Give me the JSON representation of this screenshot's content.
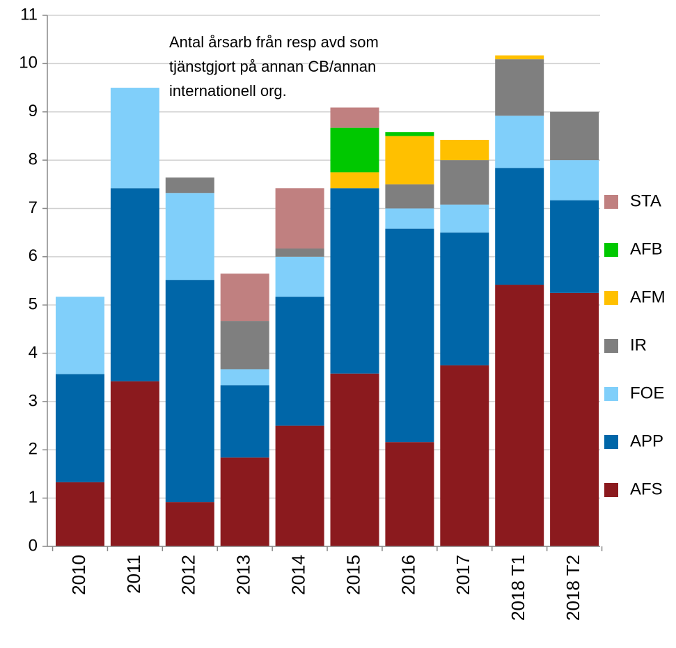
{
  "chart_data": {
    "type": "stacked_bar",
    "annotation": [
      "Antal årsarb från resp avd som",
      "tjänstgjort på annan CB/annan",
      "internationell org."
    ],
    "categories": [
      "2010",
      "2011",
      "2012",
      "2013",
      "2014",
      "2015",
      "2016",
      "2017",
      "2018 T1",
      "2018 T2"
    ],
    "series": [
      {
        "name": "AFS",
        "color": "#8b1a1e",
        "values": [
          1.33,
          3.42,
          0.92,
          1.84,
          2.5,
          3.58,
          2.16,
          3.75,
          5.42,
          5.25
        ]
      },
      {
        "name": "APP",
        "color": "#0066a8",
        "values": [
          2.24,
          4.0,
          4.6,
          1.5,
          2.67,
          3.84,
          4.42,
          2.75,
          2.42,
          1.92
        ]
      },
      {
        "name": "FOE",
        "color": "#80cffa",
        "values": [
          1.6,
          2.08,
          1.8,
          0.33,
          0.83,
          null,
          0.42,
          0.58,
          1.08,
          0.83
        ]
      },
      {
        "name": "IR",
        "color": "#7f7f7f",
        "values": [
          null,
          null,
          0.32,
          1.0,
          0.17,
          null,
          0.5,
          0.92,
          1.17,
          1.0
        ]
      },
      {
        "name": "AFM",
        "color": "#ffc000",
        "values": [
          null,
          null,
          null,
          null,
          null,
          0.33,
          1.0,
          0.42,
          0.08,
          null
        ]
      },
      {
        "name": "AFB",
        "color": "#00c800",
        "values": [
          null,
          null,
          null,
          null,
          null,
          0.92,
          0.08,
          null,
          null,
          null
        ]
      },
      {
        "name": "STA",
        "color": "#c08080",
        "values": [
          null,
          null,
          null,
          0.98,
          1.25,
          0.42,
          null,
          null,
          null,
          null
        ]
      }
    ],
    "ylim": [
      0,
      11
    ],
    "yticks": [
      0,
      1,
      2,
      3,
      4,
      5,
      6,
      7,
      8,
      9,
      10,
      11
    ],
    "grid": true,
    "legend": "right"
  }
}
